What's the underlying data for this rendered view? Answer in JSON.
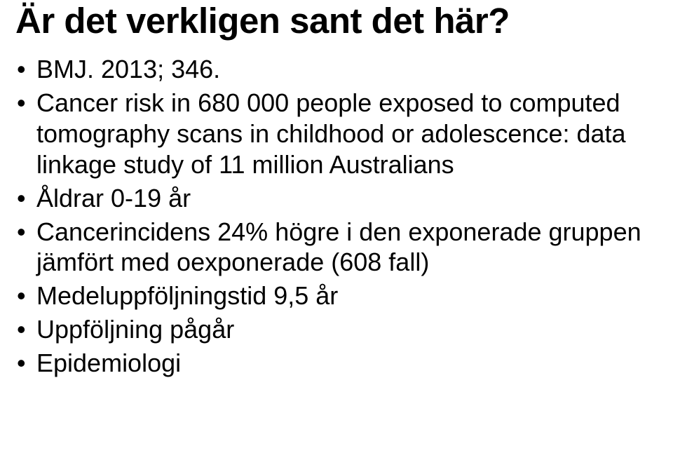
{
  "title": "Är det verkligen sant det här?",
  "bullets": [
    "BMJ. 2013; 346.",
    "Cancer risk in 680 000 people exposed to computed tomography scans in childhood or adolescence: data linkage study of 11 million Australians",
    "Åldrar 0-19 år",
    "Cancerincidens 24% högre i den exponerade gruppen jämfört med oexponerade (608 fall)",
    "Medeluppföljningstid 9,5 år",
    "Uppföljning pågår",
    "Epidemiologi"
  ]
}
